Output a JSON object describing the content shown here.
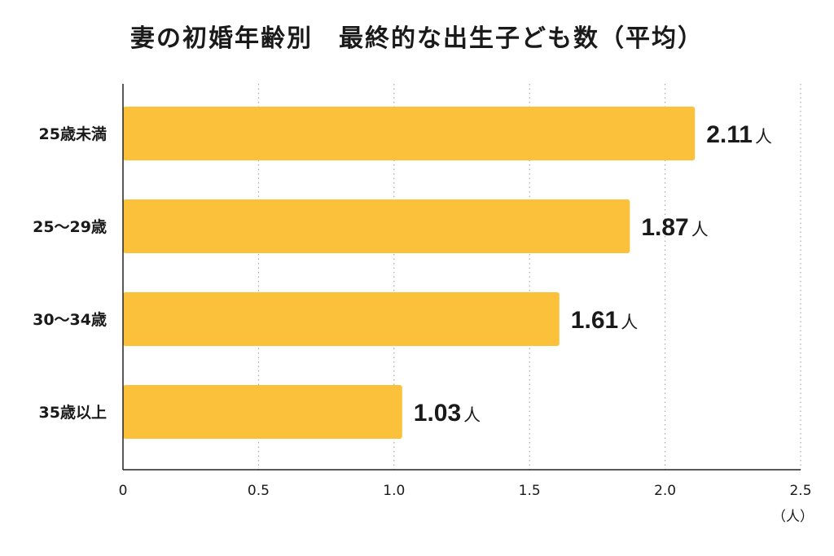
{
  "title": "妻の初婚年齢別　最終的な出生子ども数（平均）",
  "unit_label": "（人）",
  "chart_data": {
    "type": "bar",
    "orientation": "horizontal",
    "categories": [
      "25歳未満",
      "25～29歳",
      "30～34歳",
      "35歳以上"
    ],
    "values": [
      2.11,
      1.87,
      1.61,
      1.03
    ],
    "value_labels": [
      "2.11",
      "1.87",
      "1.61",
      "1.03"
    ],
    "value_suffix": "人",
    "xlim": [
      0,
      2.5
    ],
    "x_ticks": [
      "0",
      "0.5",
      "1.0",
      "1.5",
      "2.0",
      "2.5"
    ],
    "x_tick_values": [
      0,
      0.5,
      1.0,
      1.5,
      2.0,
      2.5
    ],
    "grid": "vertical dotted",
    "bar_color": "#FBC13A"
  }
}
